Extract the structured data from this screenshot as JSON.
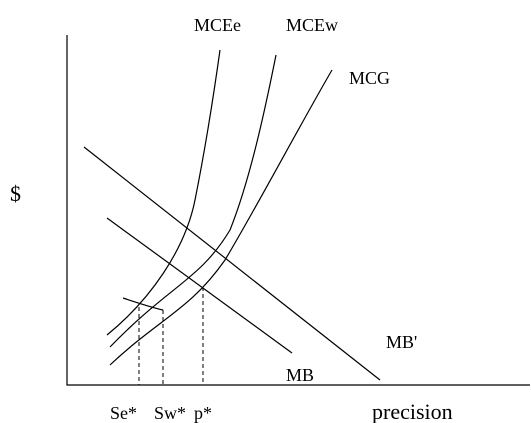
{
  "figure": {
    "y_axis_label": "$",
    "x_axis_label": "precision",
    "curves": {
      "mce_e": "MCEe",
      "mce_w": "MCEw",
      "mcg": "MCG",
      "mb": "MB",
      "mb_prime": "MB'"
    },
    "x_markers": {
      "se_star": "Se*",
      "sw_star": "Sw*",
      "p_star": "p*"
    }
  }
}
